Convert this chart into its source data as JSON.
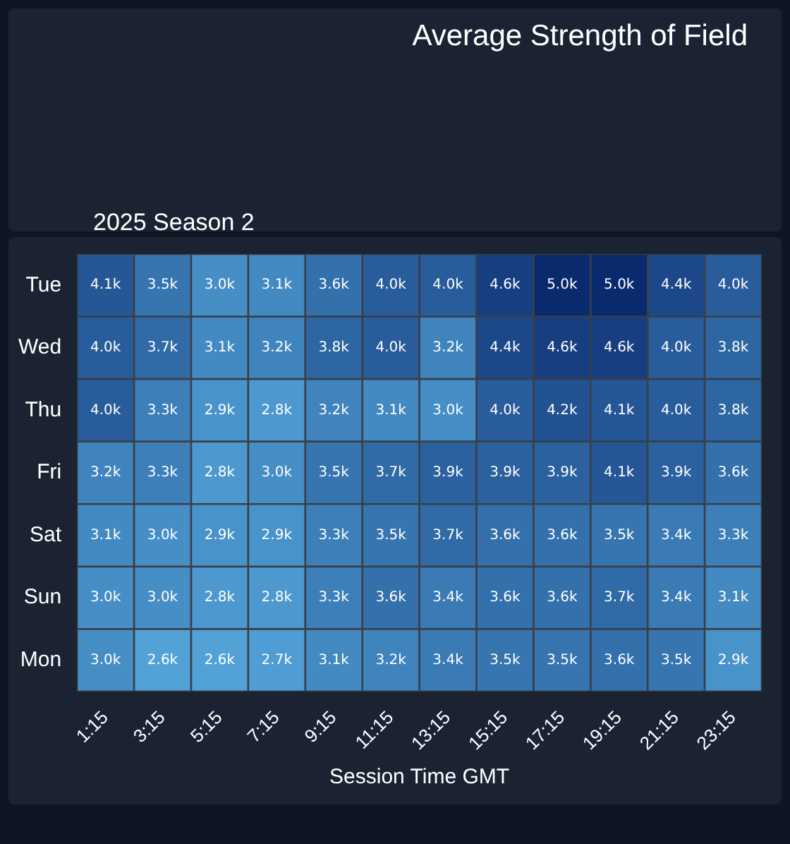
{
  "chart_data": {
    "type": "heatmap",
    "title": "Average Strength of Field",
    "subtitle": "2025 Season 2",
    "xlabel": "Session Time GMT",
    "categories": [
      "1:15",
      "3:15",
      "5:15",
      "7:15",
      "9:15",
      "11:15",
      "13:15",
      "15:15",
      "17:15",
      "19:15",
      "21:15",
      "23:15"
    ],
    "y_categories": [
      "Tue",
      "Wed",
      "Thu",
      "Fri",
      "Sat",
      "Sun",
      "Mon"
    ],
    "cells": [
      [
        4100,
        3500,
        3000,
        3100,
        3600,
        4000,
        4000,
        4600,
        5000,
        5000,
        4400,
        4000
      ],
      [
        4000,
        3700,
        3100,
        3200,
        3800,
        4000,
        3200,
        4400,
        4600,
        4600,
        4000,
        3800
      ],
      [
        4000,
        3300,
        2900,
        2800,
        3200,
        3100,
        3000,
        4000,
        4200,
        4100,
        4000,
        3800
      ],
      [
        3200,
        3300,
        2800,
        3000,
        3500,
        3700,
        3900,
        3900,
        3900,
        4100,
        3900,
        3600
      ],
      [
        3100,
        3000,
        2900,
        2900,
        3300,
        3500,
        3700,
        3600,
        3600,
        3500,
        3400,
        3300
      ],
      [
        3000,
        3000,
        2800,
        2800,
        3300,
        3600,
        3400,
        3600,
        3600,
        3700,
        3400,
        3100
      ],
      [
        3000,
        2600,
        2600,
        2700,
        3100,
        3200,
        3400,
        3500,
        3500,
        3600,
        3500,
        2900
      ]
    ],
    "cell_labels": [
      [
        "4.1k",
        "3.5k",
        "3.0k",
        "3.1k",
        "3.6k",
        "4.0k",
        "4.0k",
        "4.6k",
        "5.0k",
        "5.0k",
        "4.4k",
        "4.0k"
      ],
      [
        "4.0k",
        "3.7k",
        "3.1k",
        "3.2k",
        "3.8k",
        "4.0k",
        "3.2k",
        "4.4k",
        "4.6k",
        "4.6k",
        "4.0k",
        "3.8k"
      ],
      [
        "4.0k",
        "3.3k",
        "2.9k",
        "2.8k",
        "3.2k",
        "3.1k",
        "3.0k",
        "4.0k",
        "4.2k",
        "4.1k",
        "4.0k",
        "3.8k"
      ],
      [
        "3.2k",
        "3.3k",
        "2.8k",
        "3.0k",
        "3.5k",
        "3.7k",
        "3.9k",
        "3.9k",
        "3.9k",
        "4.1k",
        "3.9k",
        "3.6k"
      ],
      [
        "3.1k",
        "3.0k",
        "2.9k",
        "2.9k",
        "3.3k",
        "3.5k",
        "3.7k",
        "3.6k",
        "3.6k",
        "3.5k",
        "3.4k",
        "3.3k"
      ],
      [
        "3.0k",
        "3.0k",
        "2.8k",
        "2.8k",
        "3.3k",
        "3.6k",
        "3.4k",
        "3.6k",
        "3.6k",
        "3.7k",
        "3.4k",
        "3.1k"
      ],
      [
        "3.0k",
        "2.6k",
        "2.6k",
        "2.7k",
        "3.1k",
        "3.2k",
        "3.4k",
        "3.5k",
        "3.5k",
        "3.6k",
        "3.5k",
        "2.9k"
      ]
    ]
  }
}
